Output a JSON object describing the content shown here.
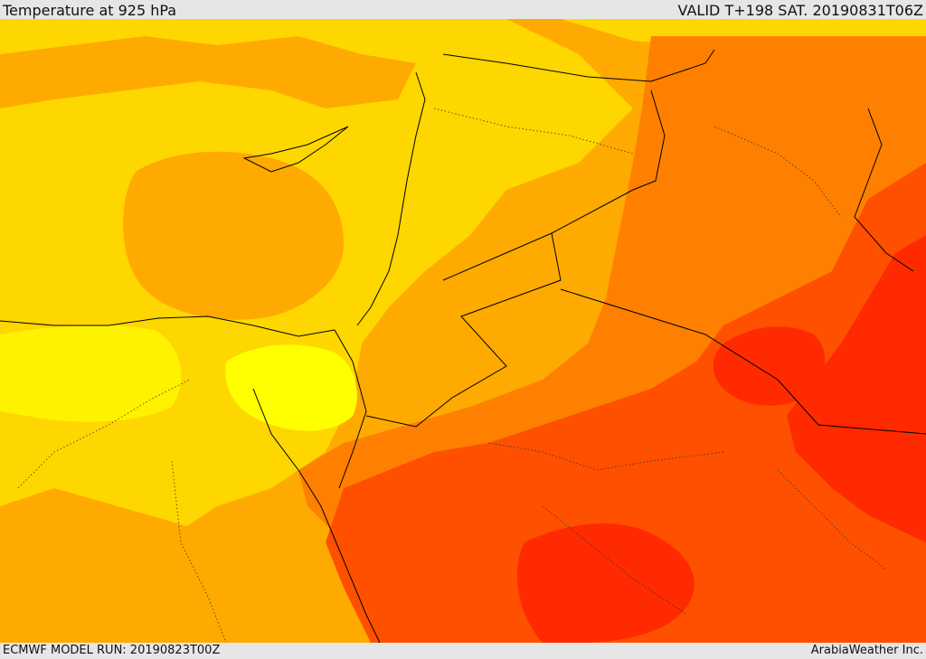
{
  "header": {
    "title": "Temperature at 925 hPa",
    "valid": "VALID T+198 SAT. 20190831T06Z"
  },
  "footer": {
    "model_run": "ECMWF MODEL RUN: 20190823T00Z",
    "credit": "ArabiaWeather Inc."
  },
  "palette": {
    "yellow": "#ffff00",
    "gold": "#ffd700",
    "amber": "#ffaa00",
    "orange": "#ff8000",
    "red_orange": "#ff5000",
    "red": "#ff2a00",
    "border": "#000000"
  }
}
